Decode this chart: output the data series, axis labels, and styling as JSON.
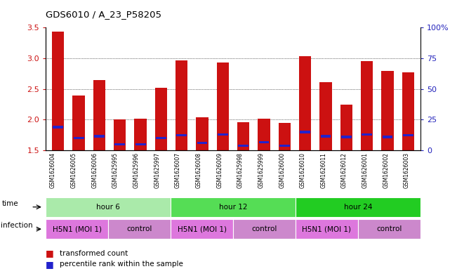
{
  "title": "GDS6010 / A_23_P58205",
  "samples": [
    "GSM1626004",
    "GSM1626005",
    "GSM1626006",
    "GSM1625995",
    "GSM1625996",
    "GSM1625997",
    "GSM1626007",
    "GSM1626008",
    "GSM1626009",
    "GSM1625998",
    "GSM1625999",
    "GSM1626000",
    "GSM1626010",
    "GSM1626011",
    "GSM1626012",
    "GSM1626001",
    "GSM1626002",
    "GSM1626003"
  ],
  "red_values": [
    3.44,
    2.39,
    2.65,
    2.01,
    2.02,
    2.52,
    2.97,
    2.04,
    2.93,
    1.96,
    2.02,
    1.95,
    3.03,
    2.61,
    2.24,
    2.96,
    2.8,
    2.77
  ],
  "blue_values": [
    1.88,
    1.7,
    1.73,
    1.6,
    1.6,
    1.7,
    1.75,
    1.62,
    1.76,
    1.58,
    1.63,
    1.58,
    1.8,
    1.73,
    1.72,
    1.76,
    1.72,
    1.75
  ],
  "ymin": 1.5,
  "ymax": 3.5,
  "yticks": [
    1.5,
    2.0,
    2.5,
    3.0,
    3.5
  ],
  "right_yticks": [
    0,
    25,
    50,
    75,
    100
  ],
  "right_ytick_labels": [
    "0",
    "25",
    "50",
    "75",
    "100%"
  ],
  "time_groups": [
    {
      "label": "hour 6",
      "start": 0,
      "end": 6,
      "color": "#aaeaaa"
    },
    {
      "label": "hour 12",
      "start": 6,
      "end": 12,
      "color": "#55dd55"
    },
    {
      "label": "hour 24",
      "start": 12,
      "end": 18,
      "color": "#22cc22"
    }
  ],
  "infection_groups": [
    {
      "label": "H5N1 (MOI 1)",
      "start": 0,
      "end": 3,
      "color": "#dd77dd"
    },
    {
      "label": "control",
      "start": 3,
      "end": 6,
      "color": "#cc88cc"
    },
    {
      "label": "H5N1 (MOI 1)",
      "start": 6,
      "end": 9,
      "color": "#dd77dd"
    },
    {
      "label": "control",
      "start": 9,
      "end": 12,
      "color": "#cc88cc"
    },
    {
      "label": "H5N1 (MOI 1)",
      "start": 12,
      "end": 15,
      "color": "#dd77dd"
    },
    {
      "label": "control",
      "start": 15,
      "end": 18,
      "color": "#cc88cc"
    }
  ],
  "bar_width": 0.6,
  "bar_color": "#cc1111",
  "blue_color": "#2222cc",
  "grid_color": "#000000",
  "left_tick_color": "#cc1111",
  "right_tick_color": "#2222bb"
}
